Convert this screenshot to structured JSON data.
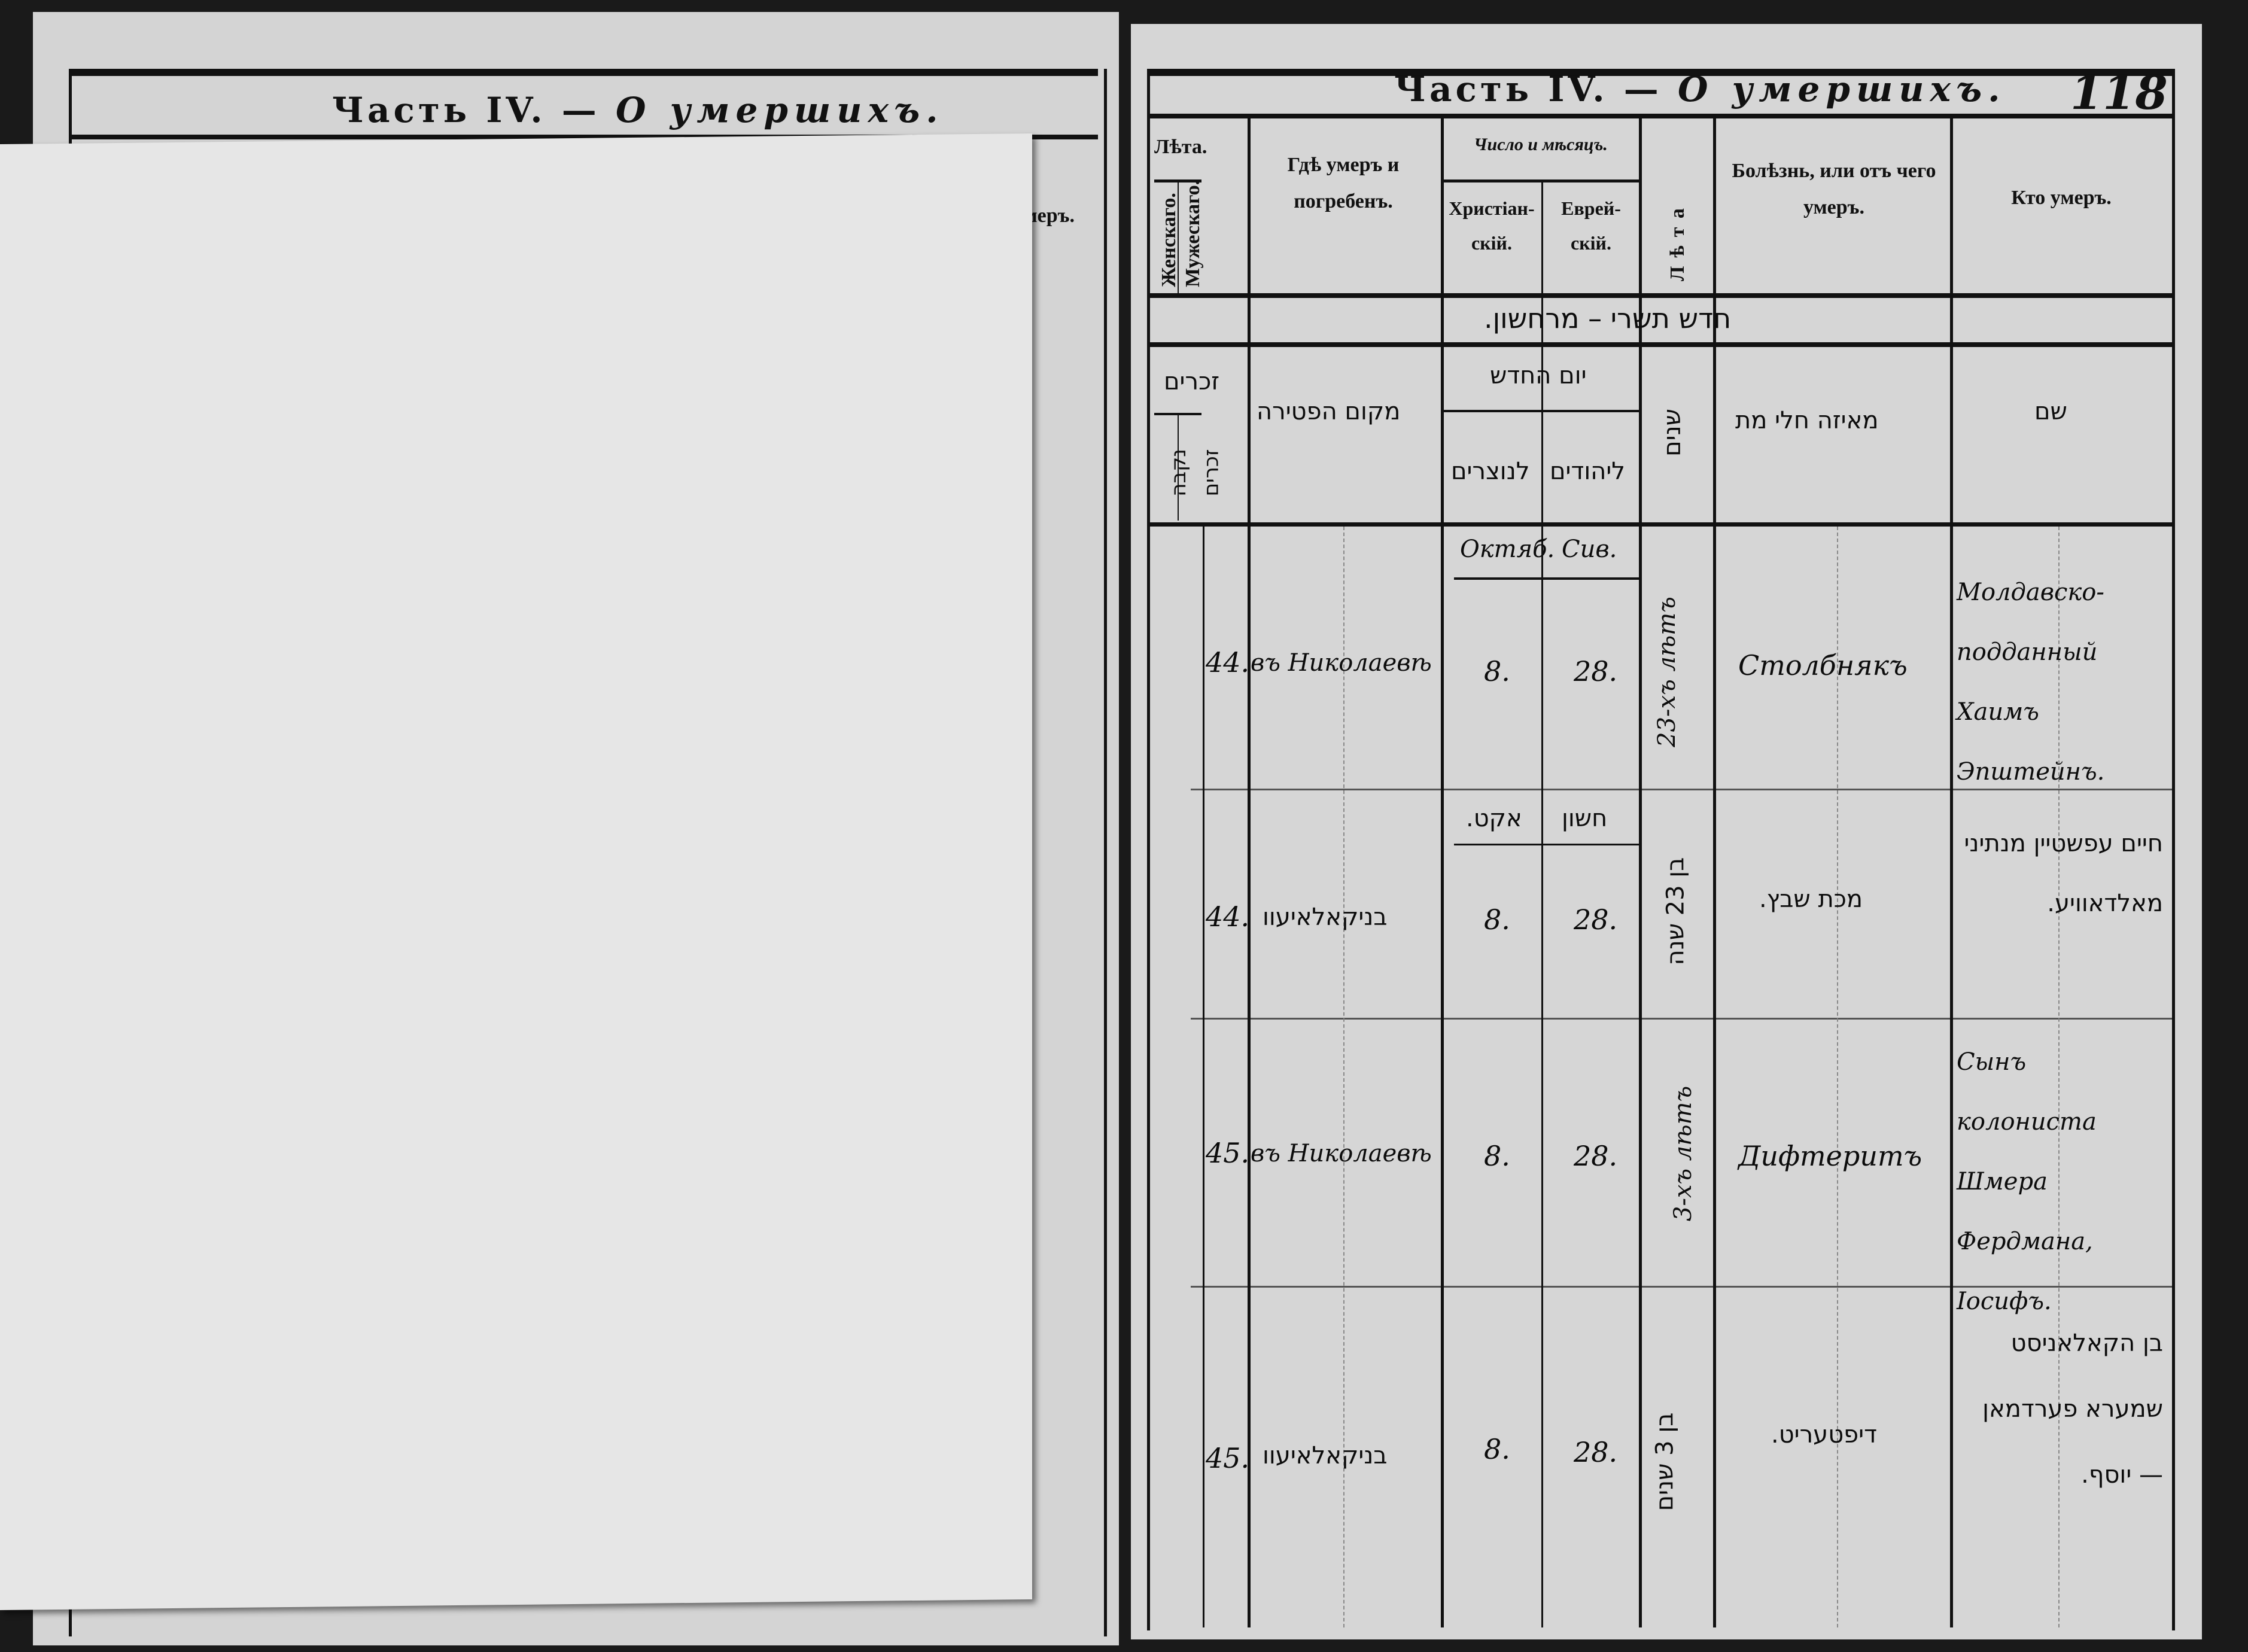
{
  "left_page": {
    "title_part": "Часть IV. —",
    "title_rest": "О умершихъ.",
    "visible_header_fragment": "умеръ."
  },
  "right_page": {
    "title_part": "Часть IV. —",
    "title_rest": "О умершихъ.",
    "page_number": "118",
    "headers": {
      "age_group": "Лѣта.",
      "female": "Женскаго.",
      "male": "Мужескаго.",
      "where_died": "Гдѣ умеръ и погребенъ.",
      "date_group": "Число и мѣсяцъ.",
      "christian": "Христіан-скій.",
      "jewish": "Еврей-скій.",
      "years": "Лѣта",
      "disease": "Болѣзнь, или отъ чего умеръ.",
      "who_died": "Кто умеръ."
    },
    "hebrew_heading": "חדש תשרי – מרחשון.",
    "hebrew_subheaders": {
      "age": "זכרים",
      "age_sub_1": "נקבה",
      "age_sub_2": "זכרים",
      "place": "מקום הפטירה",
      "date": "יום החדש",
      "date_christian": "לנוצרים",
      "date_jewish": "ליהודים",
      "years": "שנים",
      "disease": "מאיזה חלי מת",
      "who": "שם"
    },
    "months": {
      "christian": "Октяб.",
      "jewish": "Сив."
    },
    "months_hebrew": {
      "christian": "אקט.",
      "jewish": "חשון"
    },
    "entries": [
      {
        "number": "44.",
        "place": "въ Николаевѣ",
        "christian_day": "8.",
        "jewish_day": "28.",
        "age": "23-хъ лѣтъ",
        "disease": "Столбнякъ",
        "who": "Молдавско-подданный Хаимъ Эпштейнъ."
      },
      {
        "number": "44.",
        "place": "בניקאלאיעוו",
        "christian_day": "8.",
        "jewish_day": "28.",
        "age": "בן 23 שנה",
        "disease": "מכת שבץ.",
        "who": "חיים עפשטיין מנתיני מאלדאוויע."
      },
      {
        "number": "45.",
        "place": "въ Николаевѣ",
        "christian_day": "8.",
        "jewish_day": "28.",
        "age": "3-хъ лѣтъ",
        "disease": "Дифтеритъ",
        "who": "Сынъ колониста Шмера Фердмана, Іосифъ."
      },
      {
        "number": "45.",
        "place": "בניקאלאיעוו",
        "christian_day": "8.",
        "jewish_day": "28.",
        "age": "בן 3 שנים",
        "disease": "דיפטעריט.",
        "who": "בן הקאלאניסט שמערא פערדמאן — יוסף."
      }
    ]
  }
}
